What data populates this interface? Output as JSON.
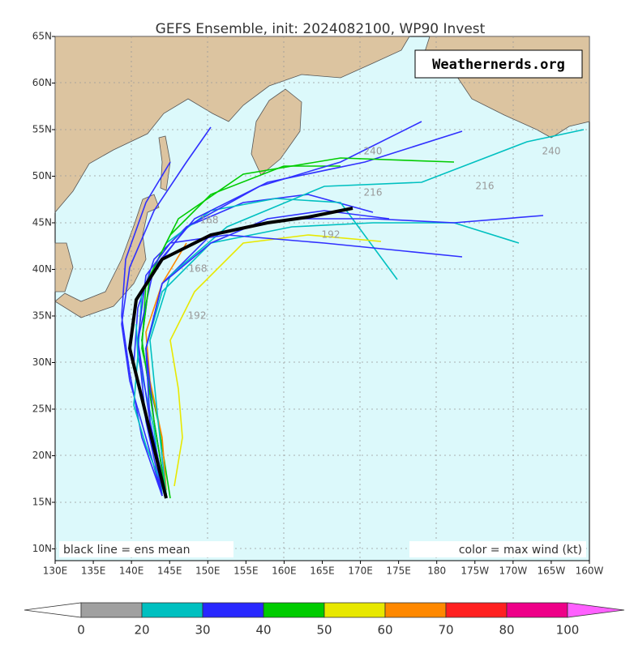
{
  "title": "GEFS Ensemble, init: 2024082100, WP90 Invest",
  "watermark": "Weathernerds.org",
  "legend_left": "black line = ens mean",
  "legend_right": "color = max wind (kt)",
  "lat_labels": [
    "65N",
    "60N",
    "55N",
    "50N",
    "45N",
    "40N",
    "35N",
    "30N",
    "25N",
    "20N",
    "15N",
    "10N"
  ],
  "lon_labels": [
    "130E",
    "135E",
    "140E",
    "145E",
    "150E",
    "155E",
    "160E",
    "165E",
    "170E",
    "175E",
    "180",
    "175W",
    "170W",
    "165W",
    "160W"
  ],
  "colorbar_labels": [
    "0",
    "20",
    "30",
    "40",
    "50",
    "60",
    "70",
    "80",
    "100"
  ],
  "hour_labels": [
    "240",
    "240",
    "216",
    "216",
    "192",
    "192",
    "168",
    "168"
  ]
}
